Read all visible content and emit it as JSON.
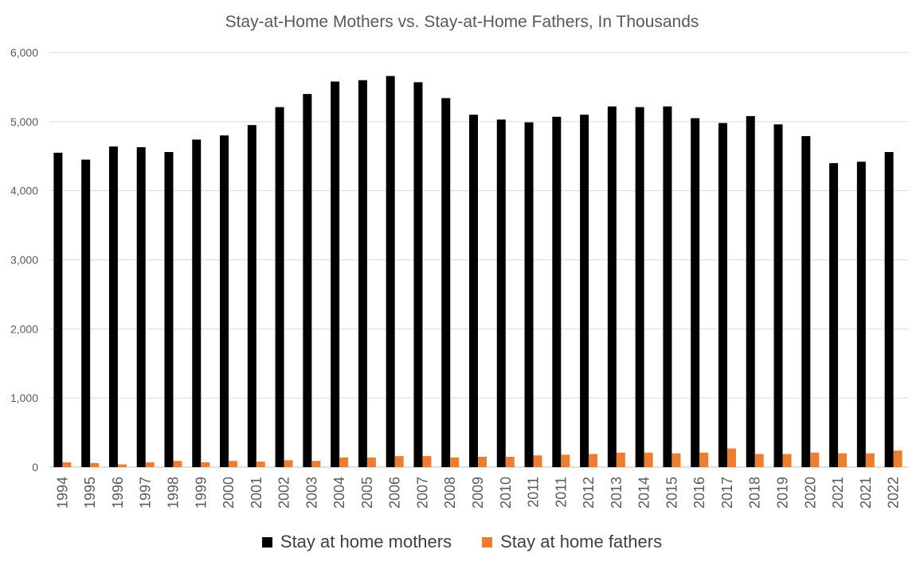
{
  "chart_data": {
    "type": "bar",
    "title": "Stay-at-Home Mothers vs. Stay-at-Home Fathers, In Thousands",
    "xlabel": "",
    "ylabel": "",
    "ylim": [
      0,
      6000
    ],
    "yticks": [
      "0",
      "1,000",
      "2,000",
      "3,000",
      "4,000",
      "5,000",
      "6,000"
    ],
    "grid": true,
    "legend_position": "bottom",
    "categories": [
      "1994",
      "1995",
      "1996",
      "1997",
      "1998",
      "1999",
      "2000",
      "2001",
      "2002",
      "2003",
      "2004",
      "2005",
      "2006",
      "2007",
      "2008",
      "2009",
      "2010",
      "2011",
      "2011",
      "2012",
      "2013",
      "2014",
      "2015",
      "2016",
      "2017",
      "2018",
      "2019",
      "2020",
      "2021",
      "2021",
      "2022"
    ],
    "series": [
      {
        "name": "Stay at home mothers",
        "color": "#000000",
        "values": [
          4550,
          4450,
          4640,
          4630,
          4560,
          4740,
          4800,
          4950,
          5210,
          5400,
          5580,
          5600,
          5660,
          5570,
          5340,
          5100,
          5030,
          4990,
          5070,
          5100,
          5220,
          5210,
          5220,
          5050,
          4980,
          5080,
          4960,
          4790,
          4400,
          4420,
          4560
        ]
      },
      {
        "name": "Stay at home fathers",
        "color": "#ED7D31",
        "values": [
          70,
          60,
          40,
          70,
          90,
          70,
          90,
          80,
          100,
          90,
          140,
          140,
          160,
          160,
          140,
          150,
          150,
          170,
          180,
          190,
          210,
          210,
          200,
          210,
          270,
          190,
          190,
          210,
          200,
          200,
          240
        ]
      }
    ]
  }
}
